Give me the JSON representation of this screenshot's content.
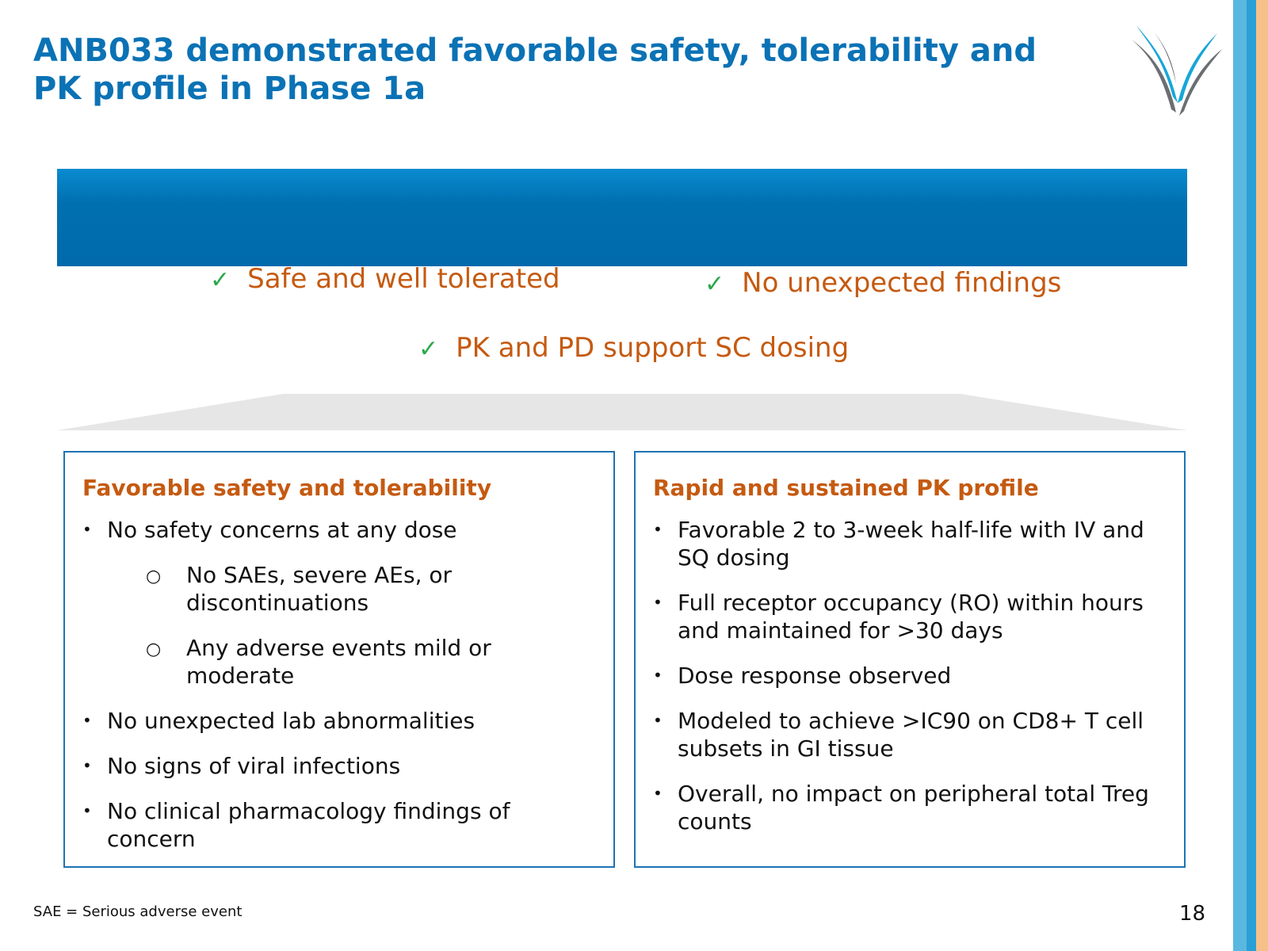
{
  "title_lines": [
    "ANB033 demonstrated favorable safety, tolerability and",
    "PK profile in Phase 1a"
  ],
  "checks": [
    {
      "label": "Safe and well tolerated"
    },
    {
      "label": "No unexpected findings"
    },
    {
      "label": "PK and PD support SC dosing"
    }
  ],
  "left_box": {
    "heading": "Favorable safety and tolerability",
    "items": [
      {
        "text": "No safety concerns at any dose",
        "level": 1
      },
      {
        "text": "No SAEs, severe AEs, or discontinuations",
        "level": 2
      },
      {
        "text": "Any adverse events mild or moderate",
        "level": 2
      },
      {
        "text": "No unexpected lab abnormalities",
        "level": 1
      },
      {
        "text": "No signs of viral infections",
        "level": 1
      },
      {
        "text": "No clinical pharmacology findings of concern",
        "level": 1
      }
    ]
  },
  "right_box": {
    "heading": "Rapid and sustained PK profile",
    "items": [
      {
        "text": "Favorable 2 to 3-week half-life with IV and SQ dosing",
        "level": 1
      },
      {
        "text": "Full receptor occupancy (RO) within hours and maintained for >30 days",
        "level": 1
      },
      {
        "text": "Dose response observed",
        "level": 1
      },
      {
        "text": "Modeled to achieve >IC90 on CD8+ T cell subsets in GI tissue",
        "level": 1
      },
      {
        "text": "Overall, no impact on peripheral total Treg counts",
        "level": 1
      }
    ]
  },
  "footnote": "SAE = Serious adverse event",
  "page_number": "18",
  "colors": {
    "title": "#0b72b5",
    "banner": "#006aac",
    "accent_orange": "#c55a11",
    "check_green": "#2aa84a",
    "box_border": "#1e73b2",
    "stripe_light_blue": "#5ab8e0",
    "stripe_blue": "#2a9fd6",
    "stripe_orange": "#f5c08a"
  },
  "icons": {
    "logo": "v-chevron-logo-icon",
    "check": "check-mark-icon",
    "bullet": "bullet-dot-icon",
    "sub_bullet": "hollow-circle-bullet-icon"
  }
}
